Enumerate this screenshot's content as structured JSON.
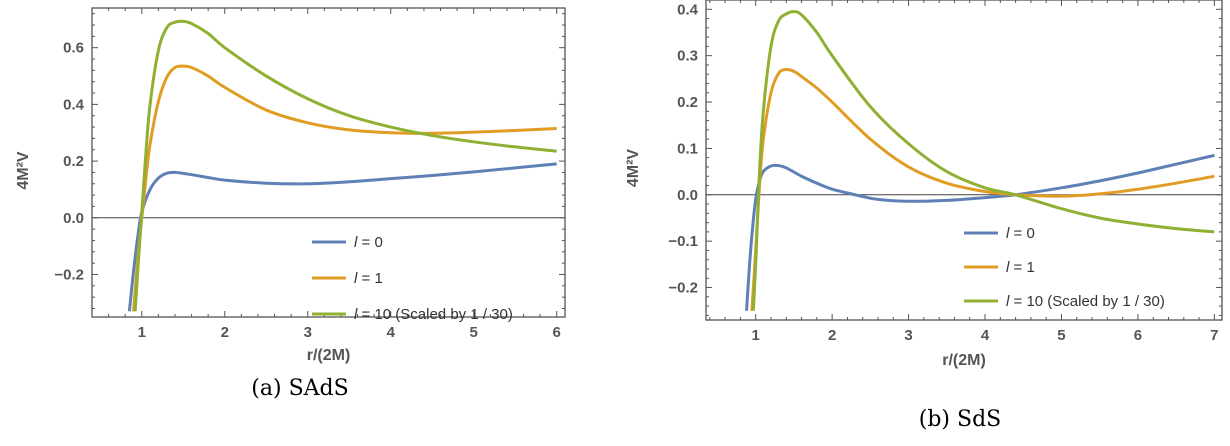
{
  "colors": {
    "blue": "#5E81B5",
    "orange": "#E19C24",
    "green": "#8FB032",
    "axis": "#555555"
  },
  "chart_data": [
    {
      "type": "line",
      "caption": "(a) SAdS",
      "xlabel": "r/(2M)",
      "ylabel": "4M²V",
      "xlim": [
        0.4,
        6.1
      ],
      "ylim": [
        -0.35,
        0.74
      ],
      "xticks": [
        1,
        2,
        3,
        4,
        5,
        6
      ],
      "yticks": [
        -0.2,
        0.0,
        0.2,
        0.4,
        0.6
      ],
      "ytick_labels": [
        "−0.2",
        "0.0",
        "0.2",
        "0.4",
        "0.6"
      ],
      "legend_position": "bottom-center",
      "series": [
        {
          "name": "l = 0",
          "color": "blue",
          "x": [
            0.85,
            0.9,
            0.95,
            1.0,
            1.1,
            1.2,
            1.3,
            1.4,
            1.6,
            1.8,
            2.0,
            2.5,
            3.0,
            3.5,
            4.0,
            4.5,
            5.0,
            5.5,
            6.0
          ],
          "y": [
            -0.33,
            -0.19,
            -0.07,
            0.02,
            0.1,
            0.14,
            0.157,
            0.16,
            0.152,
            0.142,
            0.133,
            0.122,
            0.12,
            0.127,
            0.138,
            0.149,
            0.162,
            0.176,
            0.19
          ]
        },
        {
          "name": "l = 1",
          "color": "orange",
          "x": [
            0.9,
            0.95,
            1.0,
            1.05,
            1.1,
            1.2,
            1.3,
            1.4,
            1.5,
            1.6,
            1.8,
            2.0,
            2.5,
            3.0,
            3.5,
            4.0,
            4.5,
            5.0,
            5.5,
            6.0
          ],
          "y": [
            -0.33,
            -0.15,
            0.0,
            0.14,
            0.26,
            0.41,
            0.495,
            0.53,
            0.535,
            0.53,
            0.5,
            0.46,
            0.38,
            0.335,
            0.31,
            0.3,
            0.298,
            0.302,
            0.308,
            0.315
          ]
        },
        {
          "name": "l = 10 (Scaled by 1 / 30)",
          "color": "green",
          "x": [
            0.92,
            0.96,
            1.0,
            1.05,
            1.1,
            1.2,
            1.3,
            1.4,
            1.5,
            1.6,
            1.8,
            2.0,
            2.5,
            3.0,
            3.5,
            4.0,
            4.5,
            5.0,
            5.5,
            6.0
          ],
          "y": [
            -0.33,
            -0.15,
            0.02,
            0.23,
            0.4,
            0.59,
            0.67,
            0.69,
            0.693,
            0.685,
            0.65,
            0.6,
            0.5,
            0.42,
            0.36,
            0.32,
            0.29,
            0.268,
            0.25,
            0.235
          ]
        }
      ]
    },
    {
      "type": "line",
      "caption": "(b) SdS",
      "xlabel": "r/(2M)",
      "ylabel": "4M²V",
      "xlim": [
        0.35,
        7.1
      ],
      "ylim": [
        -0.27,
        0.42
      ],
      "xticks": [
        1,
        2,
        3,
        4,
        5,
        6,
        7
      ],
      "yticks": [
        -0.2,
        -0.1,
        0.0,
        0.1,
        0.2,
        0.3,
        0.4
      ],
      "ytick_labels": [
        "−0.2",
        "−0.1",
        "0.0",
        "0.1",
        "0.2",
        "0.3",
        "0.4"
      ],
      "legend_position": "bottom-right",
      "series": [
        {
          "name": "l = 0",
          "color": "blue",
          "x": [
            0.88,
            0.92,
            0.96,
            1.0,
            1.05,
            1.1,
            1.2,
            1.3,
            1.4,
            1.6,
            1.8,
            2.0,
            2.3,
            2.6,
            3.0,
            3.5,
            4.0,
            4.4,
            5.0,
            5.5,
            6.0,
            6.5,
            7.0
          ],
          "y": [
            -0.25,
            -0.15,
            -0.07,
            -0.01,
            0.03,
            0.05,
            0.062,
            0.063,
            0.058,
            0.04,
            0.025,
            0.012,
            0.0,
            -0.01,
            -0.014,
            -0.012,
            -0.006,
            0.0,
            0.015,
            0.03,
            0.047,
            0.066,
            0.085
          ]
        },
        {
          "name": "l = 1",
          "color": "orange",
          "x": [
            0.95,
            1.0,
            1.05,
            1.1,
            1.2,
            1.3,
            1.4,
            1.5,
            1.6,
            1.8,
            2.0,
            2.5,
            3.0,
            3.5,
            4.0,
            4.4,
            5.0,
            5.5,
            6.0,
            6.5,
            7.0
          ],
          "y": [
            -0.25,
            -0.12,
            0.02,
            0.12,
            0.22,
            0.262,
            0.27,
            0.266,
            0.255,
            0.23,
            0.2,
            0.12,
            0.06,
            0.025,
            0.007,
            0.0,
            -0.003,
            0.002,
            0.012,
            0.025,
            0.04
          ]
        },
        {
          "name": "l = 10 (Scaled by 1 / 30)",
          "color": "green",
          "x": [
            0.97,
            1.0,
            1.05,
            1.1,
            1.2,
            1.3,
            1.4,
            1.5,
            1.6,
            1.8,
            2.0,
            2.5,
            3.0,
            3.5,
            4.0,
            4.4,
            5.0,
            5.5,
            6.0,
            6.5,
            7.0
          ],
          "y": [
            -0.25,
            -0.15,
            0.05,
            0.18,
            0.32,
            0.375,
            0.39,
            0.395,
            0.388,
            0.35,
            0.3,
            0.19,
            0.11,
            0.05,
            0.015,
            0.0,
            -0.03,
            -0.05,
            -0.063,
            -0.073,
            -0.08
          ]
        }
      ]
    }
  ]
}
